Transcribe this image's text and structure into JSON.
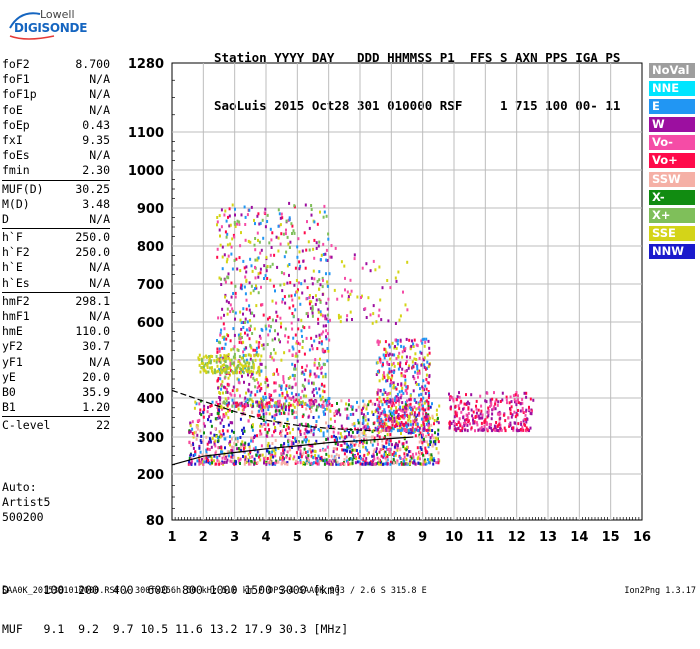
{
  "logo": {
    "line1": "Lowell",
    "line2": "DIGISONDE"
  },
  "header": {
    "line1": "Station YYYY DAY   DDD HHMMSS P1  FFS S AXN PPS IGA PS",
    "line2": "SaoLuis 2015 Oct28 301 010000 RSF     1 715 100 00- 11"
  },
  "params": {
    "group1": [
      {
        "label": "foF2",
        "value": "8.700"
      },
      {
        "label": "foF1",
        "value": "N/A"
      },
      {
        "label": "foF1p",
        "value": "N/A"
      },
      {
        "label": "foE",
        "value": "N/A"
      },
      {
        "label": "foEp",
        "value": "0.43"
      },
      {
        "label": "fxI",
        "value": "9.35"
      },
      {
        "label": "foEs",
        "value": "N/A"
      },
      {
        "label": "fmin",
        "value": "2.30"
      }
    ],
    "group2": [
      {
        "label": "MUF(D)",
        "value": "30.25"
      },
      {
        "label": "M(D)",
        "value": "3.48"
      },
      {
        "label": "D",
        "value": "N/A"
      }
    ],
    "group3": [
      {
        "label": "h`F",
        "value": "250.0"
      },
      {
        "label": "h`F2",
        "value": "250.0"
      },
      {
        "label": "h`E",
        "value": "N/A"
      },
      {
        "label": "h`Es",
        "value": "N/A"
      }
    ],
    "group4": [
      {
        "label": "hmF2",
        "value": "298.1"
      },
      {
        "label": "hmF1",
        "value": "N/A"
      },
      {
        "label": "hmE",
        "value": "110.0"
      },
      {
        "label": "yF2",
        "value": "30.7"
      },
      {
        "label": "yF1",
        "value": "N/A"
      },
      {
        "label": "yE",
        "value": "20.0"
      },
      {
        "label": "B0",
        "value": "35.9"
      },
      {
        "label": "B1",
        "value": "1.20"
      }
    ],
    "group5": [
      {
        "label": "C-level",
        "value": "22"
      }
    ]
  },
  "auto": {
    "line1": "Auto:",
    "line2": "Artist5",
    "line3": "500200"
  },
  "legend": [
    {
      "label": "NoVal",
      "color": "#9e9e9e"
    },
    {
      "label": "NNE",
      "color": "#00e5ff"
    },
    {
      "label": "E",
      "color": "#2196f3"
    },
    {
      "label": "W",
      "color": "#9c0fa0"
    },
    {
      "label": "Vo-",
      "color": "#f54ca6"
    },
    {
      "label": "Vo+",
      "color": "#ff0a4a"
    },
    {
      "label": "SSW",
      "color": "#f5b0a6"
    },
    {
      "label": "X-",
      "color": "#118c11"
    },
    {
      "label": "X+",
      "color": "#7fbf5a"
    },
    {
      "label": "SSE",
      "color": "#d4d418"
    },
    {
      "label": "NNW",
      "color": "#1a1acc"
    }
  ],
  "footer": {
    "line1": "D     100  200  400  600  800 1000 1500 3000 [km]",
    "line2": "MUF   9.1  9.2  9.7 10.5 11.6 13.2 17.9 30.3 [MHz]"
  },
  "bottom": {
    "line": "SAA0K_2015301010000.RSF / 300fx256h 50 kHz 5.0 km / DPS-4 SAA0K 903 / 2.6 S 315.8 E",
    "version": "Ion2Png 1.3.17"
  },
  "chart_data": {
    "type": "scatter",
    "x_ticks": [
      "1",
      "2",
      "3",
      "4",
      "5",
      "6",
      "7",
      "8",
      "9",
      "10",
      "11",
      "12",
      "13",
      "14",
      "15",
      "16"
    ],
    "y_ticks": [
      "80",
      "200",
      "300",
      "400",
      "500",
      "600",
      "700",
      "800",
      "900",
      "1000",
      "1100",
      "1280"
    ],
    "xlim": [
      1,
      16
    ],
    "ylim_ticks": [
      80,
      1280
    ],
    "grid": true,
    "traces": [
      {
        "name": "",
        "x": [
          1.0,
          2.0,
          3.0,
          4.0,
          5.0,
          6.0,
          7.0,
          7.5,
          8.0,
          8.7
        ],
        "y": [
          225,
          248,
          258,
          268,
          276,
          285,
          290,
          293,
          296,
          300
        ]
      },
      {
        "name": "",
        "x": [
          1.0,
          2.0,
          3.0,
          4.0,
          5.0,
          6.0,
          7.0,
          7.5
        ],
        "y": [
          420,
          392,
          365,
          343,
          330,
          322,
          318,
          316
        ]
      }
    ],
    "clusters": [
      {
        "x": [
          1.5,
          9.5
        ],
        "y": [
          230,
          400
        ],
        "n": 1400,
        "colors": [
          "#ff0a4a",
          "#f54ca6",
          "#9c0fa0",
          "#1a1acc",
          "#2196f3",
          "#118c11",
          "#d4d418",
          "#f5b0a6"
        ]
      },
      {
        "x": [
          2.4,
          6.0
        ],
        "y": [
          380,
          920
        ],
        "n": 900,
        "colors": [
          "#9c0fa0",
          "#f54ca6",
          "#ff0a4a",
          "#d4d418",
          "#7fbf5a",
          "#2196f3"
        ]
      },
      {
        "x": [
          1.8,
          3.8
        ],
        "y": [
          470,
          520
        ],
        "n": 160,
        "colors": [
          "#d4d418",
          "#d4d418",
          "#7fbf5a"
        ]
      },
      {
        "x": [
          7.5,
          9.2
        ],
        "y": [
          320,
          560
        ],
        "n": 500,
        "colors": [
          "#ff0a4a",
          "#f54ca6",
          "#9c0fa0",
          "#2196f3",
          "#d4d418"
        ]
      },
      {
        "x": [
          9.8,
          12.5
        ],
        "y": [
          320,
          420
        ],
        "n": 300,
        "colors": [
          "#ff0a4a",
          "#f54ca6",
          "#9c0fa0"
        ]
      },
      {
        "x": [
          5.0,
          8.5
        ],
        "y": [
          600,
          820
        ],
        "n": 90,
        "colors": [
          "#d4d418",
          "#9c0fa0",
          "#f54ca6"
        ]
      }
    ]
  }
}
